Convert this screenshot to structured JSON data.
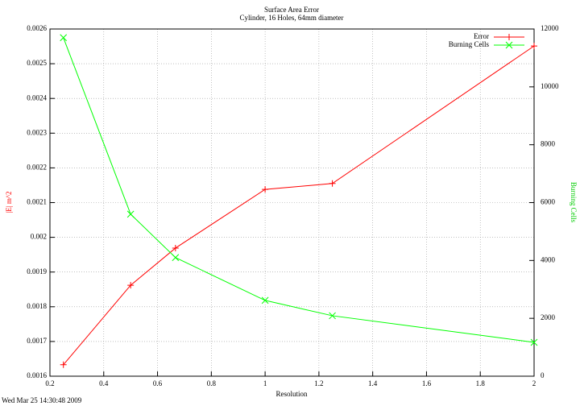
{
  "chart_data": {
    "type": "line",
    "title": "Surface Area Error",
    "subtitle": "Cylinder, 16 Holes, 64mm diameter",
    "x_label": "Resolution",
    "y_label": "|E| m^2",
    "y2_label": "Burning Cells",
    "timestamp": "Wed Mar 25 14:30:48 2009",
    "x": [
      0.25,
      0.5,
      0.6667,
      1,
      1.25,
      2
    ],
    "series": [
      {
        "name": "Error",
        "color": "#ff0000",
        "marker": "plus",
        "axis": "y",
        "values": [
          0.001633,
          0.001862,
          0.001969,
          0.002138,
          0.002155,
          0.002551
        ]
      },
      {
        "name": "Burning Cells",
        "color": "#00ff00",
        "marker": "cross",
        "axis": "y2",
        "values": [
          11700,
          5600,
          4100,
          2620,
          2090,
          1170
        ]
      }
    ],
    "xlim": [
      0.2,
      2
    ],
    "xticks": [
      0.2,
      0.4,
      0.6,
      0.8,
      1,
      1.2,
      1.4,
      1.6,
      1.8,
      2
    ],
    "ylim": [
      0.0016,
      0.0026
    ],
    "yticks": [
      0.0016,
      0.0017,
      0.0018,
      0.0019,
      0.002,
      0.0021,
      0.0022,
      0.0023,
      0.0024,
      0.0025,
      0.0026
    ],
    "y2lim": [
      0,
      12000
    ],
    "y2ticks": [
      0,
      2000,
      4000,
      6000,
      8000,
      10000,
      12000
    ],
    "grid": true,
    "legend": "top-right"
  }
}
